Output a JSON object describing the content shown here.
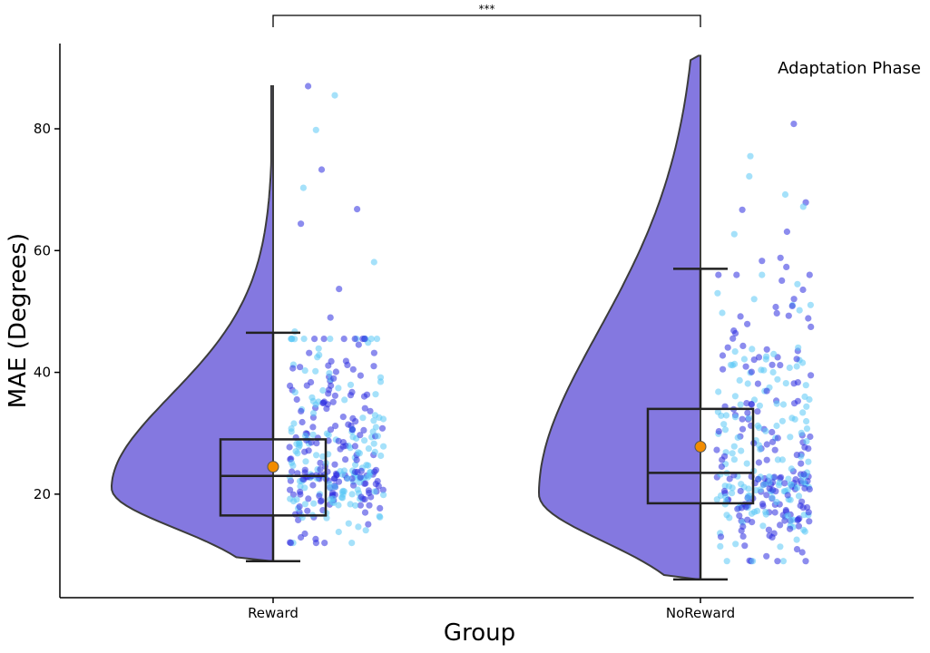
{
  "chart_data": {
    "type": "raincloud",
    "title": "",
    "annotation": "Adaptation Phase",
    "xlabel": "Group",
    "ylabel": "MAE (Degrees)",
    "ylim": [
      3,
      94
    ],
    "yticks": [
      20,
      40,
      60,
      80
    ],
    "categories": [
      "Reward",
      "NoReward"
    ],
    "significance": {
      "between": [
        "Reward",
        "NoReward"
      ],
      "label": "***"
    },
    "colors": {
      "violin": "#8478E0",
      "violin_edge": "#3c3c3c",
      "point_dark": "#2E2EE0",
      "point_light": "#5BC8F5",
      "mean_marker": "#F28C00",
      "box": "#222222"
    },
    "series": [
      {
        "category": "Reward",
        "box": {
          "min": 9,
          "q1": 16.5,
          "median": 23,
          "q3": 29,
          "max": 46.5
        },
        "mean": 24.5,
        "range": [
          9,
          87
        ],
        "density_mode": 21,
        "outliers": [
          85.5,
          87,
          79.8,
          73.3,
          70.3,
          66.8,
          64.4,
          58.1,
          53.7,
          49,
          46.7
        ]
      },
      {
        "category": "NoReward",
        "box": {
          "min": 6,
          "q1": 18.5,
          "median": 23.5,
          "q3": 34,
          "max": 57
        },
        "mean": 27.8,
        "range": [
          6,
          92
        ],
        "density_mode": 20,
        "outliers": [
          80.8,
          75.5,
          72.2,
          69.2,
          67.9,
          67.2,
          66.7,
          63.1,
          62.7,
          58.8,
          58.3,
          57.3
        ]
      }
    ]
  }
}
